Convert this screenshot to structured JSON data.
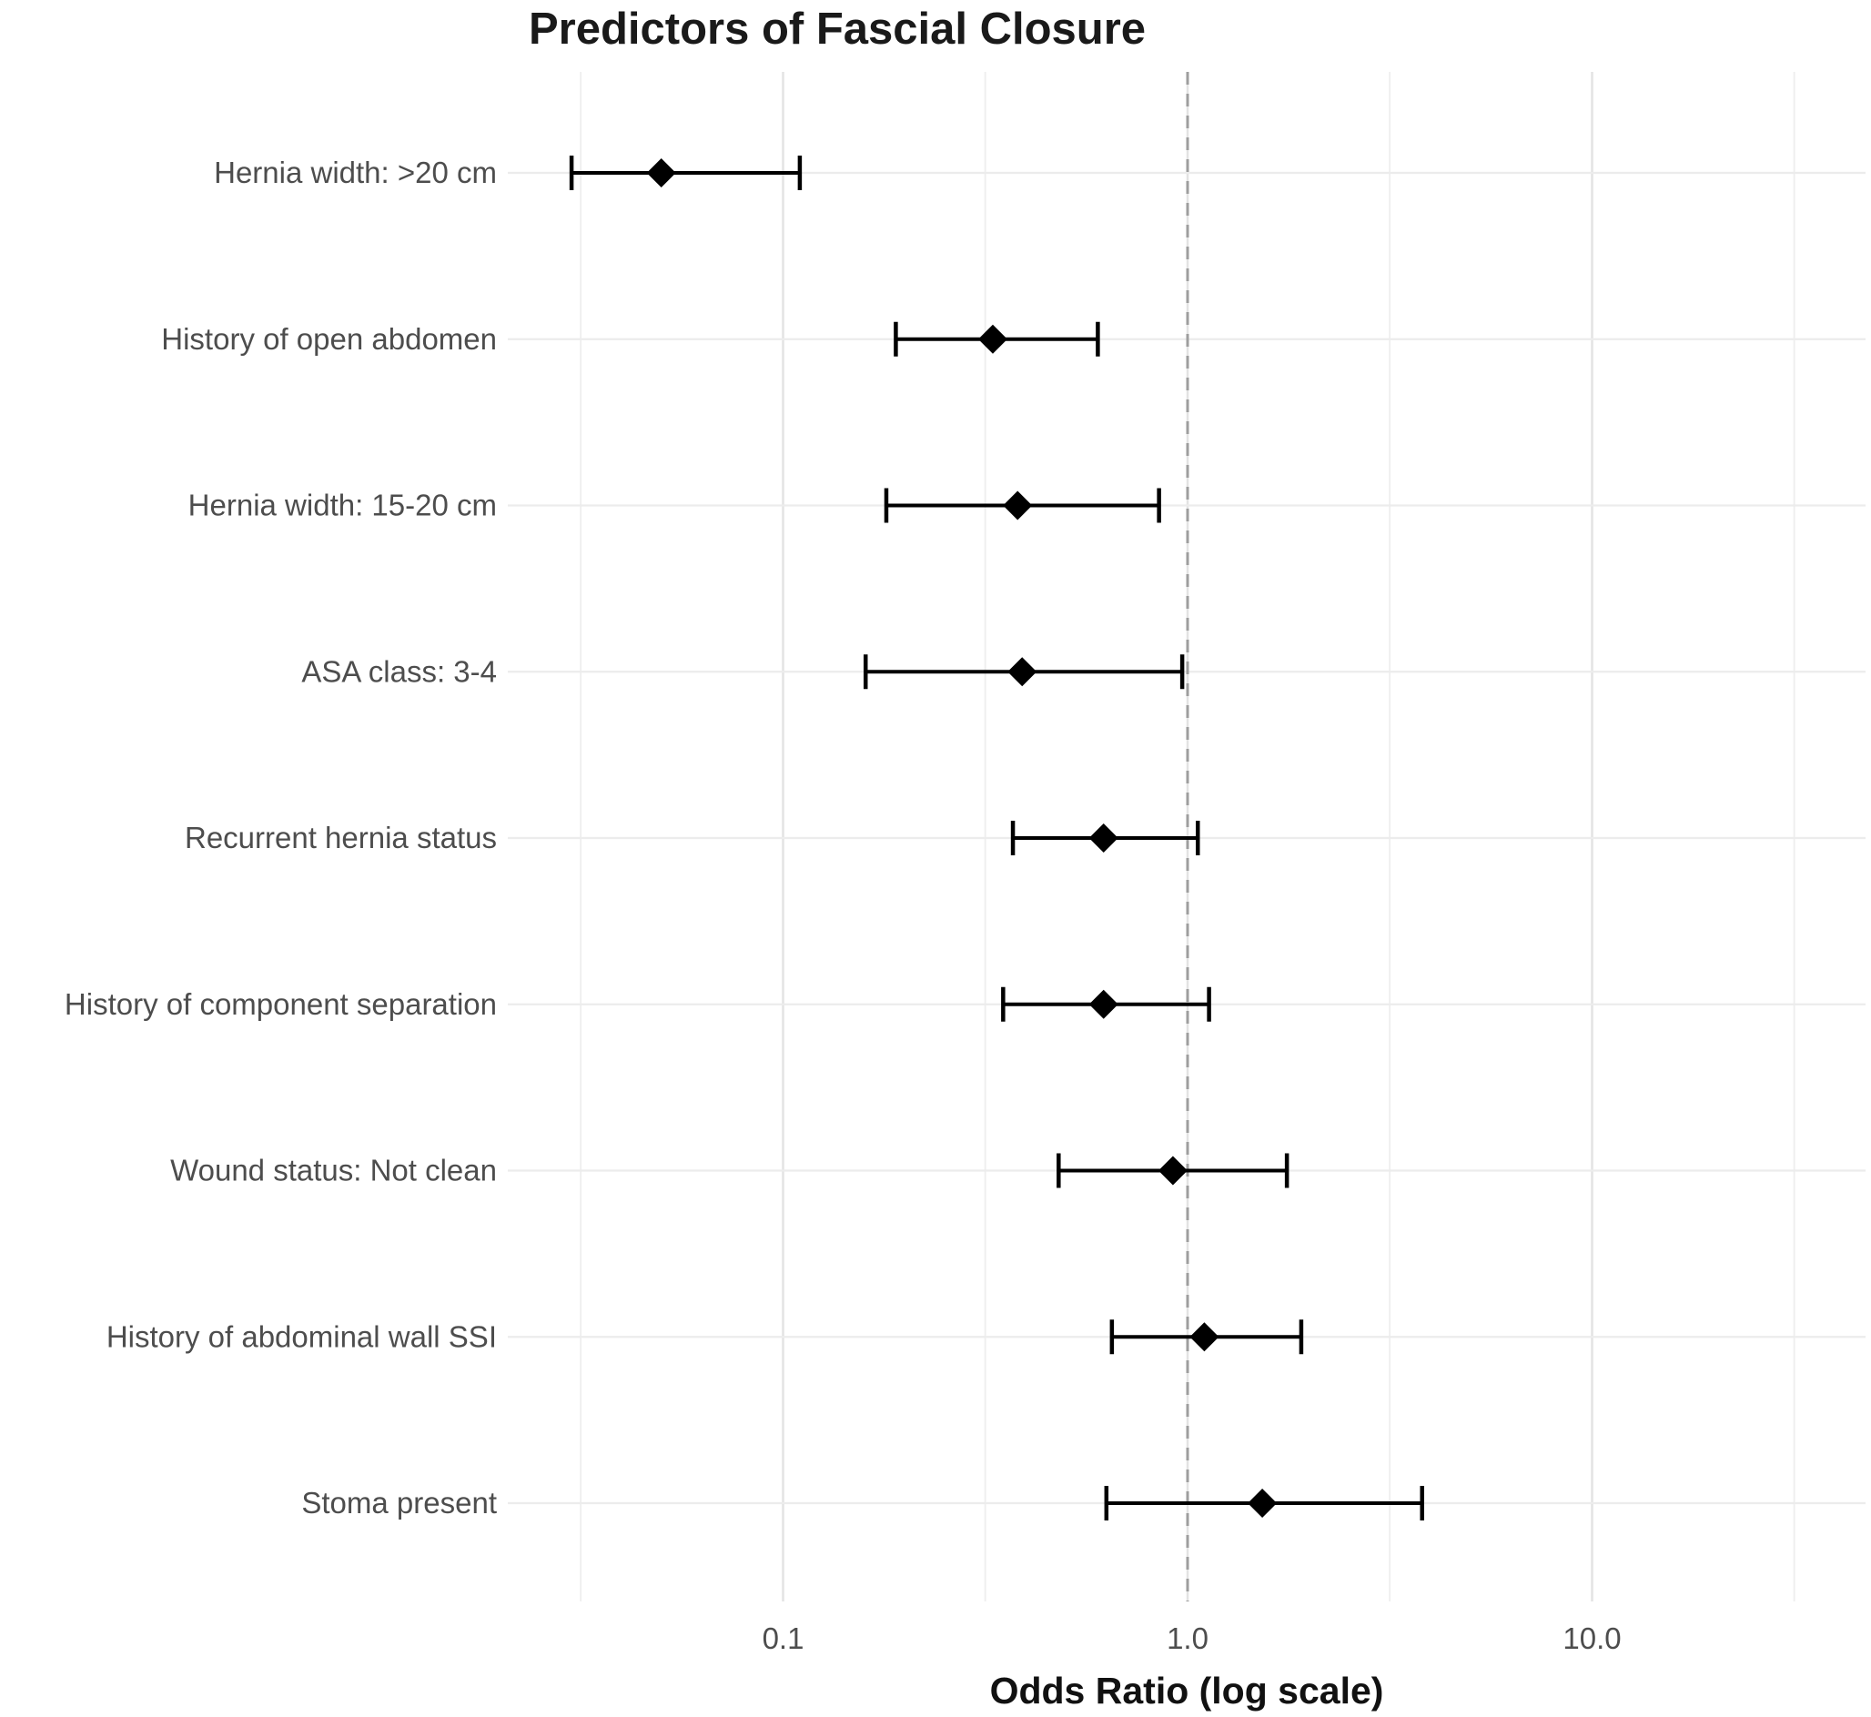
{
  "chart_data": {
    "type": "scatter",
    "subtype": "forest-plot-odds-ratios",
    "title": "Predictors of Fascial Closure",
    "xlabel": "Odds Ratio (log scale)",
    "ylabel": "",
    "x_scale": "log10",
    "xlim": [
      0.021,
      47
    ],
    "x_ticks": [
      0.1,
      1.0,
      10.0
    ],
    "x_tick_labels": [
      "0.1",
      "1.0",
      "10.0"
    ],
    "x_minor_ticks": [
      0.0316,
      0.316,
      3.16,
      31.6
    ],
    "reference_line": 1.0,
    "grid": true,
    "legend": "none",
    "rows": [
      {
        "label": "Hernia width: >20 cm",
        "or": 0.05,
        "ci_low": 0.03,
        "ci_high": 0.11
      },
      {
        "label": "History of open abdomen",
        "or": 0.33,
        "ci_low": 0.19,
        "ci_high": 0.6
      },
      {
        "label": "Hernia width: 15-20 cm",
        "or": 0.38,
        "ci_low": 0.18,
        "ci_high": 0.85
      },
      {
        "label": "ASA class: 3-4",
        "or": 0.39,
        "ci_low": 0.16,
        "ci_high": 0.97
      },
      {
        "label": "Recurrent hernia status",
        "or": 0.62,
        "ci_low": 0.37,
        "ci_high": 1.06
      },
      {
        "label": "History of component separation",
        "or": 0.62,
        "ci_low": 0.35,
        "ci_high": 1.13
      },
      {
        "label": "Wound status: Not clean",
        "or": 0.92,
        "ci_low": 0.48,
        "ci_high": 1.76
      },
      {
        "label": "History of abdominal wall SSI",
        "or": 1.1,
        "ci_low": 0.65,
        "ci_high": 1.91
      },
      {
        "label": "Stoma present",
        "or": 1.53,
        "ci_low": 0.63,
        "ci_high": 3.8
      }
    ],
    "colors": {
      "background": "#ffffff",
      "point_and_ci": "#000000",
      "grid_major": "#e3e3e3",
      "grid_minor": "#eeeeee",
      "grid_row": "#ececec",
      "reference_line": "#9e9e9e",
      "axis_text": "#4d4d4d",
      "title_text": "#1a1a1a"
    }
  }
}
